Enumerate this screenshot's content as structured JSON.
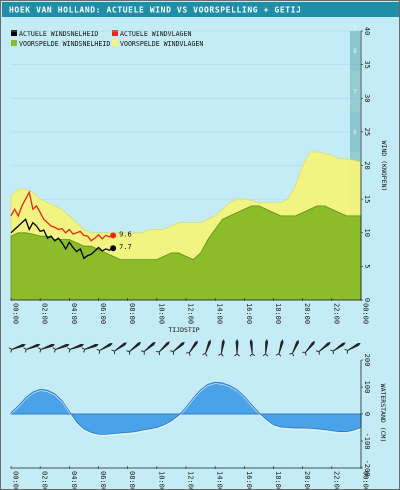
{
  "title": "HOEK VAN HOLLAND: ACTUELE WIND VS VOORSPELLING + GETIJ",
  "colors": {
    "background": "#c4ecf6",
    "title_bar": "#1f8fa8",
    "actual_speed": "#000000",
    "actual_gust": "#e8261b",
    "forecast_speed": "#8cbc2a",
    "forecast_gust": "#f4f57a",
    "tide": "#4aa3e8",
    "tide_stroke": "#2a6fbf",
    "beaufort_scale": "#5fa3aa"
  },
  "legend": [
    {
      "label": "ACTUELE WINDSNELHEID",
      "color": "#000000"
    },
    {
      "label": "ACTUELE WINDVLAGEN",
      "color": "#e8261b"
    },
    {
      "label": "VOORSPELDE WINDSNELHEID",
      "color": "#8cbc2a"
    },
    {
      "label": "VOORSPELDE WINDVLAGEN",
      "color": "#f4f57a"
    }
  ],
  "chart_data": [
    {
      "type": "area",
      "xlabel": "TIJDSTIP",
      "ylabel": "WIND (KNOPEN)",
      "x_ticks": [
        "00:00",
        "02:00",
        "04:00",
        "06:00",
        "08:00",
        "10:00",
        "12:00",
        "14:00",
        "16:00",
        "18:00",
        "20:00",
        "22:00",
        "00:00"
      ],
      "ylim": [
        0,
        40
      ],
      "y_ticks": [
        0,
        5,
        10,
        15,
        20,
        25,
        30,
        35,
        40
      ],
      "beaufort_labels": [
        "1",
        "2",
        "3",
        "4",
        "5",
        "6",
        "7",
        "8",
        "9"
      ],
      "grid": true,
      "x_hours": [
        0,
        0.5,
        1,
        1.5,
        2,
        2.5,
        3,
        3.5,
        4,
        4.5,
        5,
        5.5,
        6,
        6.5,
        7,
        7.5,
        8,
        8.5,
        9,
        9.5,
        10,
        10.5,
        11,
        11.5,
        12,
        12.5,
        13,
        13.5,
        14,
        14.5,
        15,
        15.5,
        16,
        16.5,
        17,
        17.5,
        18,
        18.5,
        19,
        19.5,
        20,
        20.5,
        21,
        21.5,
        22,
        22.5,
        23,
        23.5,
        24
      ],
      "series": [
        {
          "name": "VOORSPELDE WINDVLAGEN",
          "values": [
            15.5,
            16.5,
            16.5,
            16,
            15,
            14.5,
            14,
            13.5,
            12.5,
            11.5,
            10.5,
            10,
            10,
            10,
            10,
            10,
            10,
            10,
            10,
            10.5,
            10.5,
            10.5,
            11,
            11.5,
            11.5,
            11.5,
            11.5,
            12,
            12.5,
            13.5,
            14.5,
            15,
            15,
            14.8,
            14.5,
            14.5,
            14.5,
            14.5,
            15,
            17,
            20,
            22,
            22,
            21.8,
            21.5,
            21,
            21,
            20.8,
            20.5
          ]
        },
        {
          "name": "VOORSPELDE WINDSNELHEID",
          "values": [
            9.5,
            10,
            10,
            9.8,
            9.5,
            9.5,
            9,
            9,
            9,
            8.5,
            8,
            8,
            7.5,
            7,
            6.5,
            6,
            6,
            6,
            6,
            6,
            6,
            6.5,
            7,
            7,
            6.5,
            6,
            7,
            9,
            10.5,
            12,
            12.5,
            13,
            13.5,
            14,
            14,
            13.5,
            13,
            12.5,
            12.5,
            12.5,
            13,
            13.5,
            14,
            14,
            13.5,
            13,
            12.5,
            12.5,
            12.5
          ]
        },
        {
          "name": "ACTUELE WINDVLAGEN",
          "x": [
            0,
            0.25,
            0.5,
            0.75,
            1,
            1.25,
            1.5,
            1.75,
            2,
            2.25,
            2.5,
            2.75,
            3,
            3.25,
            3.5,
            3.75,
            4,
            4.25,
            4.5,
            4.75,
            5,
            5.25,
            5.5,
            5.75,
            6,
            6.25,
            6.5,
            6.75,
            7
          ],
          "values": [
            12.5,
            13.5,
            12.5,
            14,
            15,
            16,
            13.5,
            14,
            13,
            12,
            11.5,
            11,
            10.8,
            10.5,
            10.6,
            10,
            10.5,
            9.8,
            10,
            10.2,
            9.6,
            9.5,
            8.8,
            9.2,
            9.7,
            9.1,
            9.6,
            9.4,
            9.6
          ]
        },
        {
          "name": "ACTUELE WINDSNELHEID",
          "x": [
            0,
            0.25,
            0.5,
            0.75,
            1,
            1.25,
            1.5,
            1.75,
            2,
            2.25,
            2.5,
            2.75,
            3,
            3.25,
            3.5,
            3.75,
            4,
            4.25,
            4.5,
            4.75,
            5,
            5.25,
            5.5,
            5.75,
            6,
            6.25,
            6.5,
            6.75,
            7
          ],
          "values": [
            10,
            10.5,
            11,
            11.5,
            12,
            10.5,
            11.5,
            11,
            10.2,
            10.4,
            9.2,
            9.5,
            8.8,
            9.2,
            8.5,
            7.6,
            8.6,
            7.8,
            7.2,
            7.6,
            6.2,
            6.6,
            6.8,
            7.3,
            7.8,
            7.3,
            7.6,
            7.4,
            7.7
          ]
        }
      ],
      "annotations": [
        {
          "label": "9.6",
          "x": 7,
          "y": 9.6
        },
        {
          "label": "7.7",
          "x": 7,
          "y": 7.7
        }
      ]
    },
    {
      "type": "area",
      "xlabel": "",
      "ylabel": "WATERSTAND (CM)",
      "x_ticks": [
        "00:00",
        "02:00",
        "04:00",
        "06:00",
        "08:00",
        "10:00",
        "12:00",
        "14:00",
        "16:00",
        "18:00",
        "20:00",
        "22:00",
        "00:00"
      ],
      "ylim": [
        -200,
        200
      ],
      "y_ticks": [
        -200,
        -100,
        0,
        100,
        200
      ],
      "grid": false,
      "x_hours": [
        0,
        0.5,
        1,
        1.5,
        2,
        2.5,
        3,
        3.5,
        4,
        4.5,
        5,
        5.5,
        6,
        6.5,
        7,
        7.5,
        8,
        8.5,
        9,
        9.5,
        10,
        10.5,
        11,
        11.5,
        12,
        12.5,
        13,
        13.5,
        14,
        14.5,
        15,
        15.5,
        16,
        16.5,
        17,
        17.5,
        18,
        18.5,
        19,
        19.5,
        20,
        20.5,
        21,
        21.5,
        22,
        22.5,
        23,
        23.5,
        24
      ],
      "series": [
        {
          "name": "tide",
          "values": [
            5,
            30,
            60,
            82,
            92,
            88,
            75,
            50,
            10,
            -30,
            -55,
            -68,
            -75,
            -75,
            -73,
            -70,
            -68,
            -65,
            -60,
            -55,
            -50,
            -40,
            -25,
            -5,
            25,
            60,
            90,
            110,
            118,
            115,
            105,
            90,
            65,
            35,
            5,
            -20,
            -40,
            -48,
            -50,
            -52,
            -52,
            -53,
            -55,
            -58,
            -62,
            -65,
            -65,
            -60,
            -50
          ]
        }
      ]
    }
  ],
  "wind_direction_arrows": [
    {
      "hour": 0,
      "deg": 250
    },
    {
      "hour": 1,
      "deg": 250
    },
    {
      "hour": 2,
      "deg": 250
    },
    {
      "hour": 3,
      "deg": 250
    },
    {
      "hour": 4,
      "deg": 250
    },
    {
      "hour": 5,
      "deg": 250
    },
    {
      "hour": 6,
      "deg": 240
    },
    {
      "hour": 7,
      "deg": 235
    },
    {
      "hour": 8,
      "deg": 230
    },
    {
      "hour": 9,
      "deg": 230
    },
    {
      "hour": 10,
      "deg": 225
    },
    {
      "hour": 11,
      "deg": 230
    },
    {
      "hour": 12,
      "deg": 215
    },
    {
      "hour": 13,
      "deg": 200
    },
    {
      "hour": 14,
      "deg": 190
    },
    {
      "hour": 15,
      "deg": 180
    },
    {
      "hour": 16,
      "deg": 175
    },
    {
      "hour": 17,
      "deg": 185
    },
    {
      "hour": 18,
      "deg": 195
    },
    {
      "hour": 19,
      "deg": 205
    },
    {
      "hour": 20,
      "deg": 220
    },
    {
      "hour": 21,
      "deg": 230
    },
    {
      "hour": 22,
      "deg": 235
    },
    {
      "hour": 23,
      "deg": 240
    }
  ]
}
